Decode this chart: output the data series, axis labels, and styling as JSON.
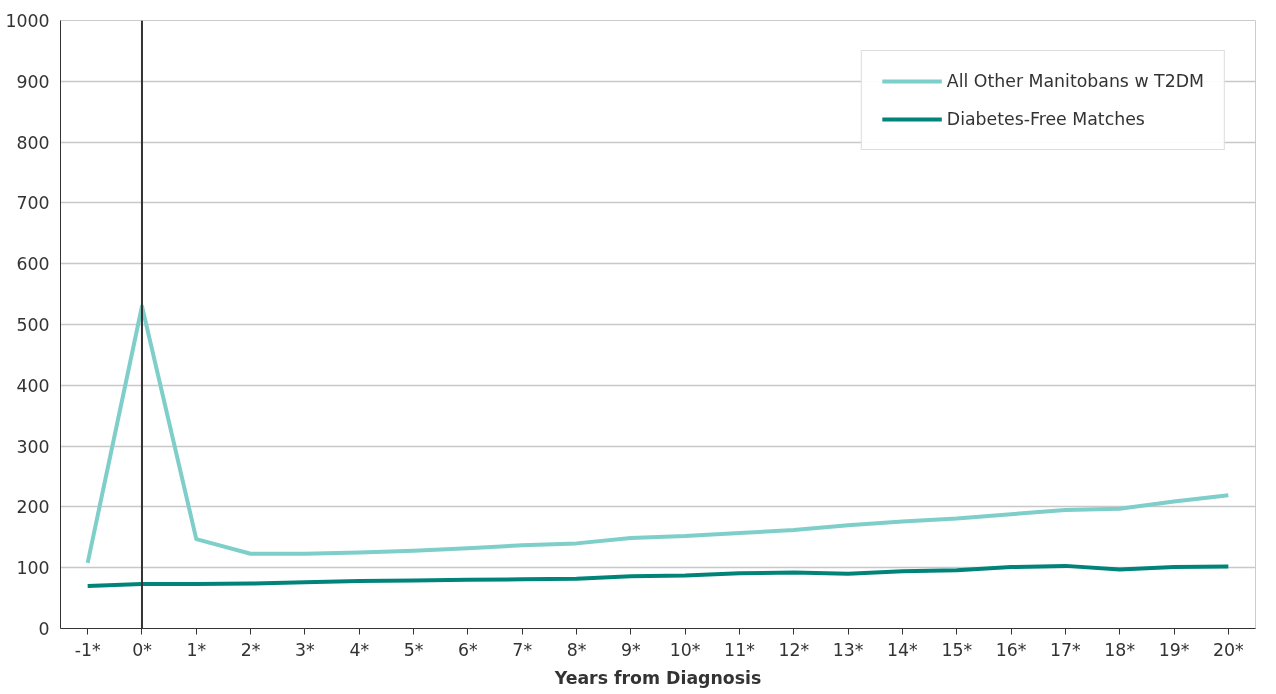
{
  "chart_data": {
    "type": "line",
    "xlabel": "Years from Diagnosis",
    "categories": [
      "-1*",
      "0*",
      "1*",
      "2*",
      "3*",
      "4*",
      "5*",
      "6*",
      "7*",
      "8*",
      "9*",
      "10*",
      "11*",
      "12*",
      "13*",
      "14*",
      "15*",
      "16*",
      "17*",
      "18*",
      "19*",
      "20*"
    ],
    "series": [
      {
        "name": "All Other Manitobans w T2DM",
        "color": "#7ececa",
        "values": [
          108,
          530,
          147,
          123,
          123,
          125,
          128,
          132,
          137,
          140,
          149,
          152,
          157,
          162,
          170,
          176,
          181,
          188,
          195,
          197,
          209,
          219
        ]
      },
      {
        "name": "Diabetes-Free Matches",
        "color": "#00847a",
        "values": [
          70,
          73,
          73,
          74,
          76,
          78,
          79,
          80,
          81,
          82,
          86,
          87,
          91,
          92,
          90,
          94,
          96,
          101,
          103,
          97,
          101,
          102
        ]
      }
    ],
    "ylim": [
      0,
      1000
    ],
    "yticks": [
      0,
      100,
      200,
      300,
      400,
      500,
      600,
      700,
      800,
      900,
      1000
    ],
    "grid": "y",
    "legend": "top right",
    "marker": "none",
    "line_style": "solid",
    "ref_lines": [
      {
        "axis": "x",
        "value": "0*",
        "color": "#333333"
      }
    ]
  }
}
